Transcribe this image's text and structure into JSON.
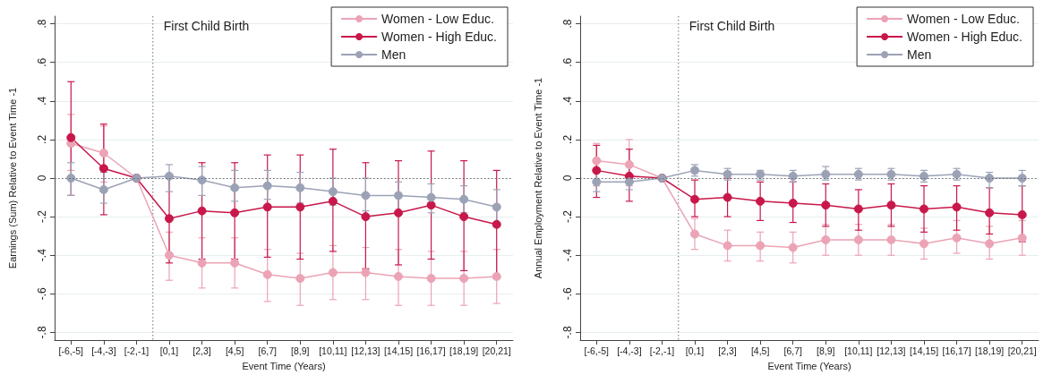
{
  "chart_data": [
    {
      "type": "line",
      "xlabel": "Event Time (Years)",
      "ylabel": "Earnings (Sum) Relative to Event Time -1",
      "categories": [
        "[-6,-5]",
        "[-4,-3]",
        "[-2,-1]",
        "[0,1]",
        "[2,3]",
        "[4,5]",
        "[6,7]",
        "[8,9]",
        "[10,11]",
        "[12,13]",
        "[14,15]",
        "[16,17]",
        "[18,19]",
        "[20,21]"
      ],
      "ylim": [
        -0.84,
        0.84
      ],
      "yticks": [
        {
          "value": -0.8,
          "label": "-.8"
        },
        {
          "value": -0.6,
          "label": "-.6"
        },
        {
          "value": -0.4,
          "label": "-.4"
        },
        {
          "value": -0.2,
          "label": "-.2"
        },
        0,
        {
          "value": 0.2,
          "label": ".2"
        },
        {
          "value": 0.4,
          "label": ".4"
        },
        {
          "value": 0.6,
          "label": ".6"
        },
        {
          "value": 0.8,
          "label": ".8"
        }
      ],
      "grid": "y",
      "legend": "top right",
      "marker": "circle",
      "ref_lines": [
        {
          "axis": "y",
          "value": 0,
          "line_style": "dotted",
          "color": "#666666"
        },
        {
          "axis": "x",
          "value": "[0,1]",
          "label": "First Child Birth",
          "line_style": "dotted",
          "color": "#888888"
        }
      ],
      "series": [
        {
          "name": "Women - Low Educ.",
          "color": "#eba3b5",
          "values": [
            0.18,
            0.13,
            0,
            -0.4,
            -0.44,
            -0.44,
            -0.5,
            -0.52,
            -0.49,
            -0.49,
            -0.51,
            -0.52,
            -0.52,
            -0.51
          ],
          "errors": [
            [
              0.04,
              0.33
            ],
            [
              -0.02,
              0.27
            ],
            null,
            [
              -0.53,
              -0.28
            ],
            [
              -0.57,
              -0.31
            ],
            [
              -0.57,
              -0.31
            ],
            [
              -0.64,
              -0.37
            ],
            [
              -0.66,
              -0.39
            ],
            [
              -0.63,
              -0.35
            ],
            [
              -0.63,
              -0.36
            ],
            [
              -0.66,
              -0.37
            ],
            [
              -0.66,
              -0.38
            ],
            [
              -0.66,
              -0.38
            ],
            [
              -0.65,
              -0.37
            ]
          ]
        },
        {
          "name": "Women - High Educ.",
          "color": "#c8174a",
          "values": [
            0.21,
            0.05,
            0,
            -0.21,
            -0.17,
            -0.18,
            -0.15,
            -0.15,
            -0.12,
            -0.2,
            -0.18,
            -0.14,
            -0.2,
            -0.24
          ],
          "errors": [
            [
              -0.09,
              0.5
            ],
            [
              -0.19,
              0.28
            ],
            null,
            [
              -0.44,
              0
            ],
            [
              -0.42,
              0.08
            ],
            [
              -0.42,
              0.08
            ],
            [
              -0.41,
              0.12
            ],
            [
              -0.42,
              0.12
            ],
            [
              -0.38,
              0.15
            ],
            [
              -0.47,
              0.08
            ],
            [
              -0.45,
              0.09
            ],
            [
              -0.42,
              0.14
            ],
            [
              -0.48,
              0.09
            ],
            [
              -0.52,
              0.04
            ]
          ]
        },
        {
          "name": "Men",
          "color": "#9ca2b6",
          "values": [
            0,
            -0.06,
            0,
            0.01,
            -0.01,
            -0.05,
            -0.04,
            -0.05,
            -0.07,
            -0.09,
            -0.09,
            -0.1,
            -0.11,
            -0.15
          ],
          "errors": [
            [
              -0.09,
              0.08
            ],
            [
              -0.13,
              0.03
            ],
            null,
            [
              -0.07,
              0.07
            ],
            [
              -0.09,
              0.06
            ],
            [
              -0.12,
              0.04
            ],
            [
              -0.11,
              0.04
            ],
            [
              -0.13,
              0.03
            ],
            [
              -0.14,
              0
            ],
            [
              -0.17,
              0
            ],
            [
              -0.18,
              -0.02
            ],
            [
              -0.18,
              -0.03
            ],
            [
              -0.18,
              -0.04
            ],
            [
              -0.24,
              -0.06
            ]
          ]
        }
      ]
    },
    {
      "type": "line",
      "xlabel": "Event Time (Years)",
      "ylabel": "Annual Employment Relative to Event Time -1",
      "categories": [
        "[-6,-5]",
        "[-4,-3]",
        "[-2,-1]",
        "[0,1]",
        "[2,3]",
        "[4,5]",
        "[6,7]",
        "[8,9]",
        "[10,11]",
        "[12,13]",
        "[14,15]",
        "[16,17]",
        "[18,19]",
        "[20,21]"
      ],
      "ylim": [
        -0.84,
        0.84
      ],
      "yticks": [
        {
          "value": -0.8,
          "label": "-.8"
        },
        {
          "value": -0.6,
          "label": "-.6"
        },
        {
          "value": -0.4,
          "label": "-.4"
        },
        {
          "value": -0.2,
          "label": "-.2"
        },
        0,
        {
          "value": 0.2,
          "label": ".2"
        },
        {
          "value": 0.4,
          "label": ".4"
        },
        {
          "value": 0.6,
          "label": ".6"
        },
        {
          "value": 0.8,
          "label": ".8"
        }
      ],
      "grid": "y",
      "legend": "top right",
      "marker": "circle",
      "ref_lines": [
        {
          "axis": "y",
          "value": 0,
          "line_style": "dotted",
          "color": "#666666"
        },
        {
          "axis": "x",
          "value": "[0,1]",
          "label": "First Child Birth",
          "line_style": "dotted",
          "color": "#888888"
        }
      ],
      "series": [
        {
          "name": "Women - Low Educ.",
          "color": "#eba3b5",
          "values": [
            0.09,
            0.07,
            0,
            -0.29,
            -0.35,
            -0.35,
            -0.36,
            -0.32,
            -0.32,
            -0.32,
            -0.34,
            -0.31,
            -0.34,
            -0.31
          ],
          "errors": [
            [
              -0.04,
              0.18
            ],
            [
              -0.04,
              0.2
            ],
            null,
            [
              -0.37,
              -0.21
            ],
            [
              -0.43,
              -0.27
            ],
            [
              -0.43,
              -0.28
            ],
            [
              -0.44,
              -0.28
            ],
            [
              -0.4,
              -0.24
            ],
            [
              -0.4,
              -0.24
            ],
            [
              -0.4,
              -0.24
            ],
            [
              -0.42,
              -0.26
            ],
            [
              -0.39,
              -0.22
            ],
            [
              -0.42,
              -0.25
            ],
            [
              -0.4,
              -0.22
            ]
          ]
        },
        {
          "name": "Women - High Educ.",
          "color": "#c8174a",
          "values": [
            0.04,
            0.01,
            0,
            -0.11,
            -0.1,
            -0.12,
            -0.13,
            -0.14,
            -0.16,
            -0.14,
            -0.16,
            -0.15,
            -0.18,
            -0.19
          ],
          "errors": [
            [
              -0.1,
              0.17
            ],
            [
              -0.12,
              0.15
            ],
            null,
            [
              -0.2,
              -0.01
            ],
            [
              -0.2,
              0
            ],
            [
              -0.22,
              -0.02
            ],
            [
              -0.23,
              -0.02
            ],
            [
              -0.25,
              -0.03
            ],
            [
              -0.27,
              -0.06
            ],
            [
              -0.25,
              -0.03
            ],
            [
              -0.28,
              -0.04
            ],
            [
              -0.27,
              -0.04
            ],
            [
              -0.29,
              -0.05
            ],
            [
              -0.33,
              -0.04
            ]
          ]
        },
        {
          "name": "Men",
          "color": "#9ca2b6",
          "values": [
            -0.02,
            -0.02,
            0,
            0.04,
            0.02,
            0.02,
            0.01,
            0.02,
            0.02,
            0.02,
            0.01,
            0.02,
            0,
            0
          ],
          "errors": [
            [
              -0.07,
              0.04
            ],
            [
              -0.06,
              0.02
            ],
            null,
            [
              0.01,
              0.07
            ],
            [
              -0.01,
              0.05
            ],
            [
              -0.01,
              0.04
            ],
            [
              -0.02,
              0.04
            ],
            [
              -0.01,
              0.06
            ],
            [
              -0.01,
              0.05
            ],
            [
              -0.01,
              0.05
            ],
            [
              -0.02,
              0.04
            ],
            [
              -0.01,
              0.05
            ],
            [
              -0.05,
              0.03
            ],
            [
              -0.04,
              0.04
            ]
          ]
        }
      ]
    }
  ]
}
